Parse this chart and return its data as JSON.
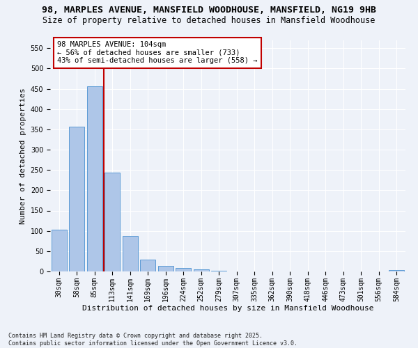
{
  "title_line1": "98, MARPLES AVENUE, MANSFIELD WOODHOUSE, MANSFIELD, NG19 9HB",
  "title_line2": "Size of property relative to detached houses in Mansfield Woodhouse",
  "xlabel": "Distribution of detached houses by size in Mansfield Woodhouse",
  "ylabel": "Number of detached properties",
  "categories": [
    "30sqm",
    "58sqm",
    "85sqm",
    "113sqm",
    "141sqm",
    "169sqm",
    "196sqm",
    "224sqm",
    "252sqm",
    "279sqm",
    "307sqm",
    "335sqm",
    "362sqm",
    "390sqm",
    "418sqm",
    "446sqm",
    "473sqm",
    "501sqm",
    "556sqm",
    "584sqm"
  ],
  "values": [
    103,
    356,
    456,
    244,
    88,
    30,
    13,
    8,
    5,
    1,
    0,
    0,
    0,
    0,
    0,
    0,
    0,
    0,
    0,
    4
  ],
  "bar_color": "#aec6e8",
  "bar_edge_color": "#5b9bd5",
  "vline_color": "#c00000",
  "annotation_text": "98 MARPLES AVENUE: 104sqm\n← 56% of detached houses are smaller (733)\n43% of semi-detached houses are larger (558) →",
  "annotation_box_color": "#ffffff",
  "annotation_box_edge": "#c00000",
  "ylim": [
    0,
    570
  ],
  "yticks": [
    0,
    50,
    100,
    150,
    200,
    250,
    300,
    350,
    400,
    450,
    500,
    550
  ],
  "footer": "Contains HM Land Registry data © Crown copyright and database right 2025.\nContains public sector information licensed under the Open Government Licence v3.0.",
  "bg_color": "#eef2f9",
  "plot_bg_color": "#eef2f9",
  "grid_color": "#ffffff",
  "title_fontsize": 9.5,
  "subtitle_fontsize": 8.5,
  "axis_label_fontsize": 8,
  "tick_fontsize": 7,
  "footer_fontsize": 6,
  "annotation_fontsize": 7.5
}
